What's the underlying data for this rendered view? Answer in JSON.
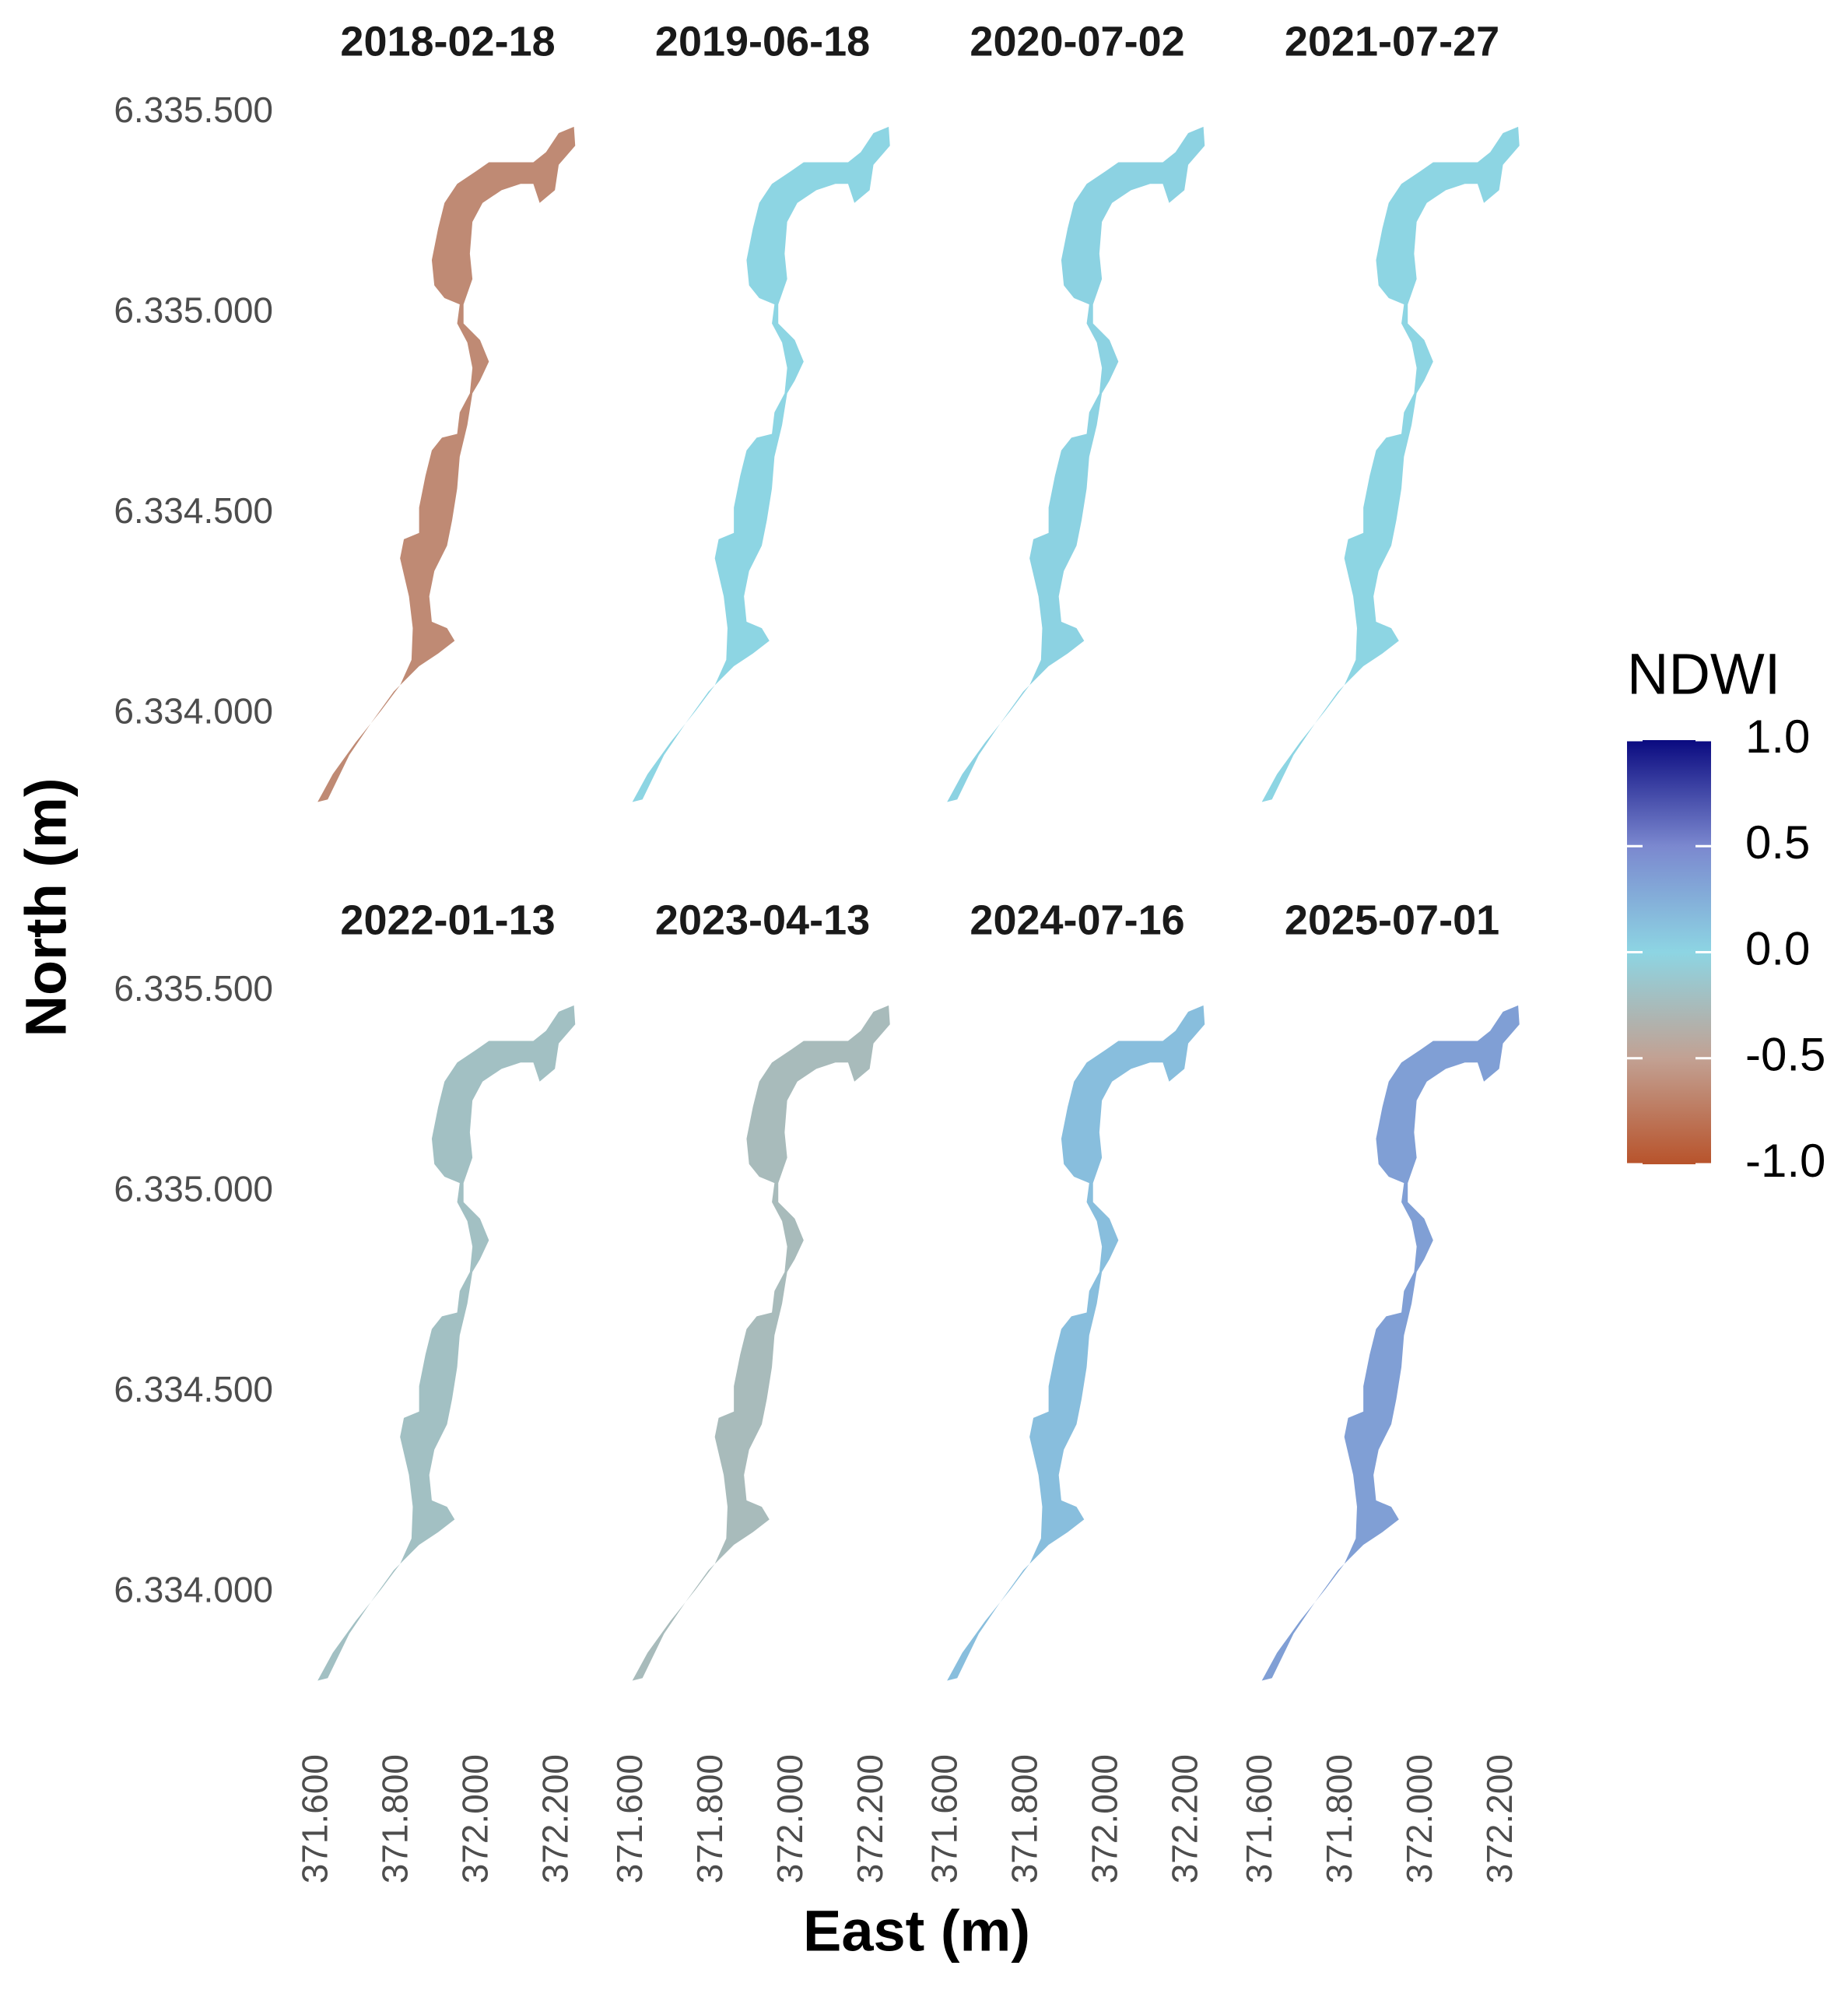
{
  "chart_data": {
    "type": "raster-facets",
    "xlabel": "East (m)",
    "ylabel": "North (m)",
    "xlim": [
      371590,
      372260
    ],
    "ylim": [
      6333760,
      6335560
    ],
    "xticks": [
      {
        "value": 371600,
        "label": "371.600"
      },
      {
        "value": 371800,
        "label": "371.800"
      },
      {
        "value": 372000,
        "label": "372.000"
      },
      {
        "value": 372200,
        "label": "372.200"
      }
    ],
    "yticks": [
      {
        "value": 6334000,
        "label": "6.334.000"
      },
      {
        "value": 6334500,
        "label": "6.334.500"
      },
      {
        "value": 6335000,
        "label": "6.335.000"
      },
      {
        "value": 6335500,
        "label": "6.335.500"
      }
    ],
    "panels": [
      {
        "title": "2018-02-18",
        "ndwi": -0.65
      },
      {
        "title": "2019-06-18",
        "ndwi": 0.0
      },
      {
        "title": "2020-07-02",
        "ndwi": 0.02
      },
      {
        "title": "2021-07-27",
        "ndwi": 0.0
      },
      {
        "title": "2022-01-13",
        "ndwi": -0.2
      },
      {
        "title": "2023-04-13",
        "ndwi": -0.25
      },
      {
        "title": "2024-07-16",
        "ndwi": 0.15
      },
      {
        "title": "2025-07-01",
        "ndwi": 0.35
      }
    ],
    "colorbar": {
      "title": "NDWI",
      "lim": [
        -1,
        1
      ],
      "ticks": [
        {
          "value": -1,
          "label": "-1.0"
        },
        -0.5,
        {
          "value": 0,
          "label": "0.0"
        },
        0.5,
        {
          "value": 1,
          "label": "1.0"
        }
      ],
      "colors": [
        "#b8532b",
        "#c2a193",
        "#8dd5e3",
        "#7b88cf",
        "#0a0a80"
      ]
    }
  }
}
